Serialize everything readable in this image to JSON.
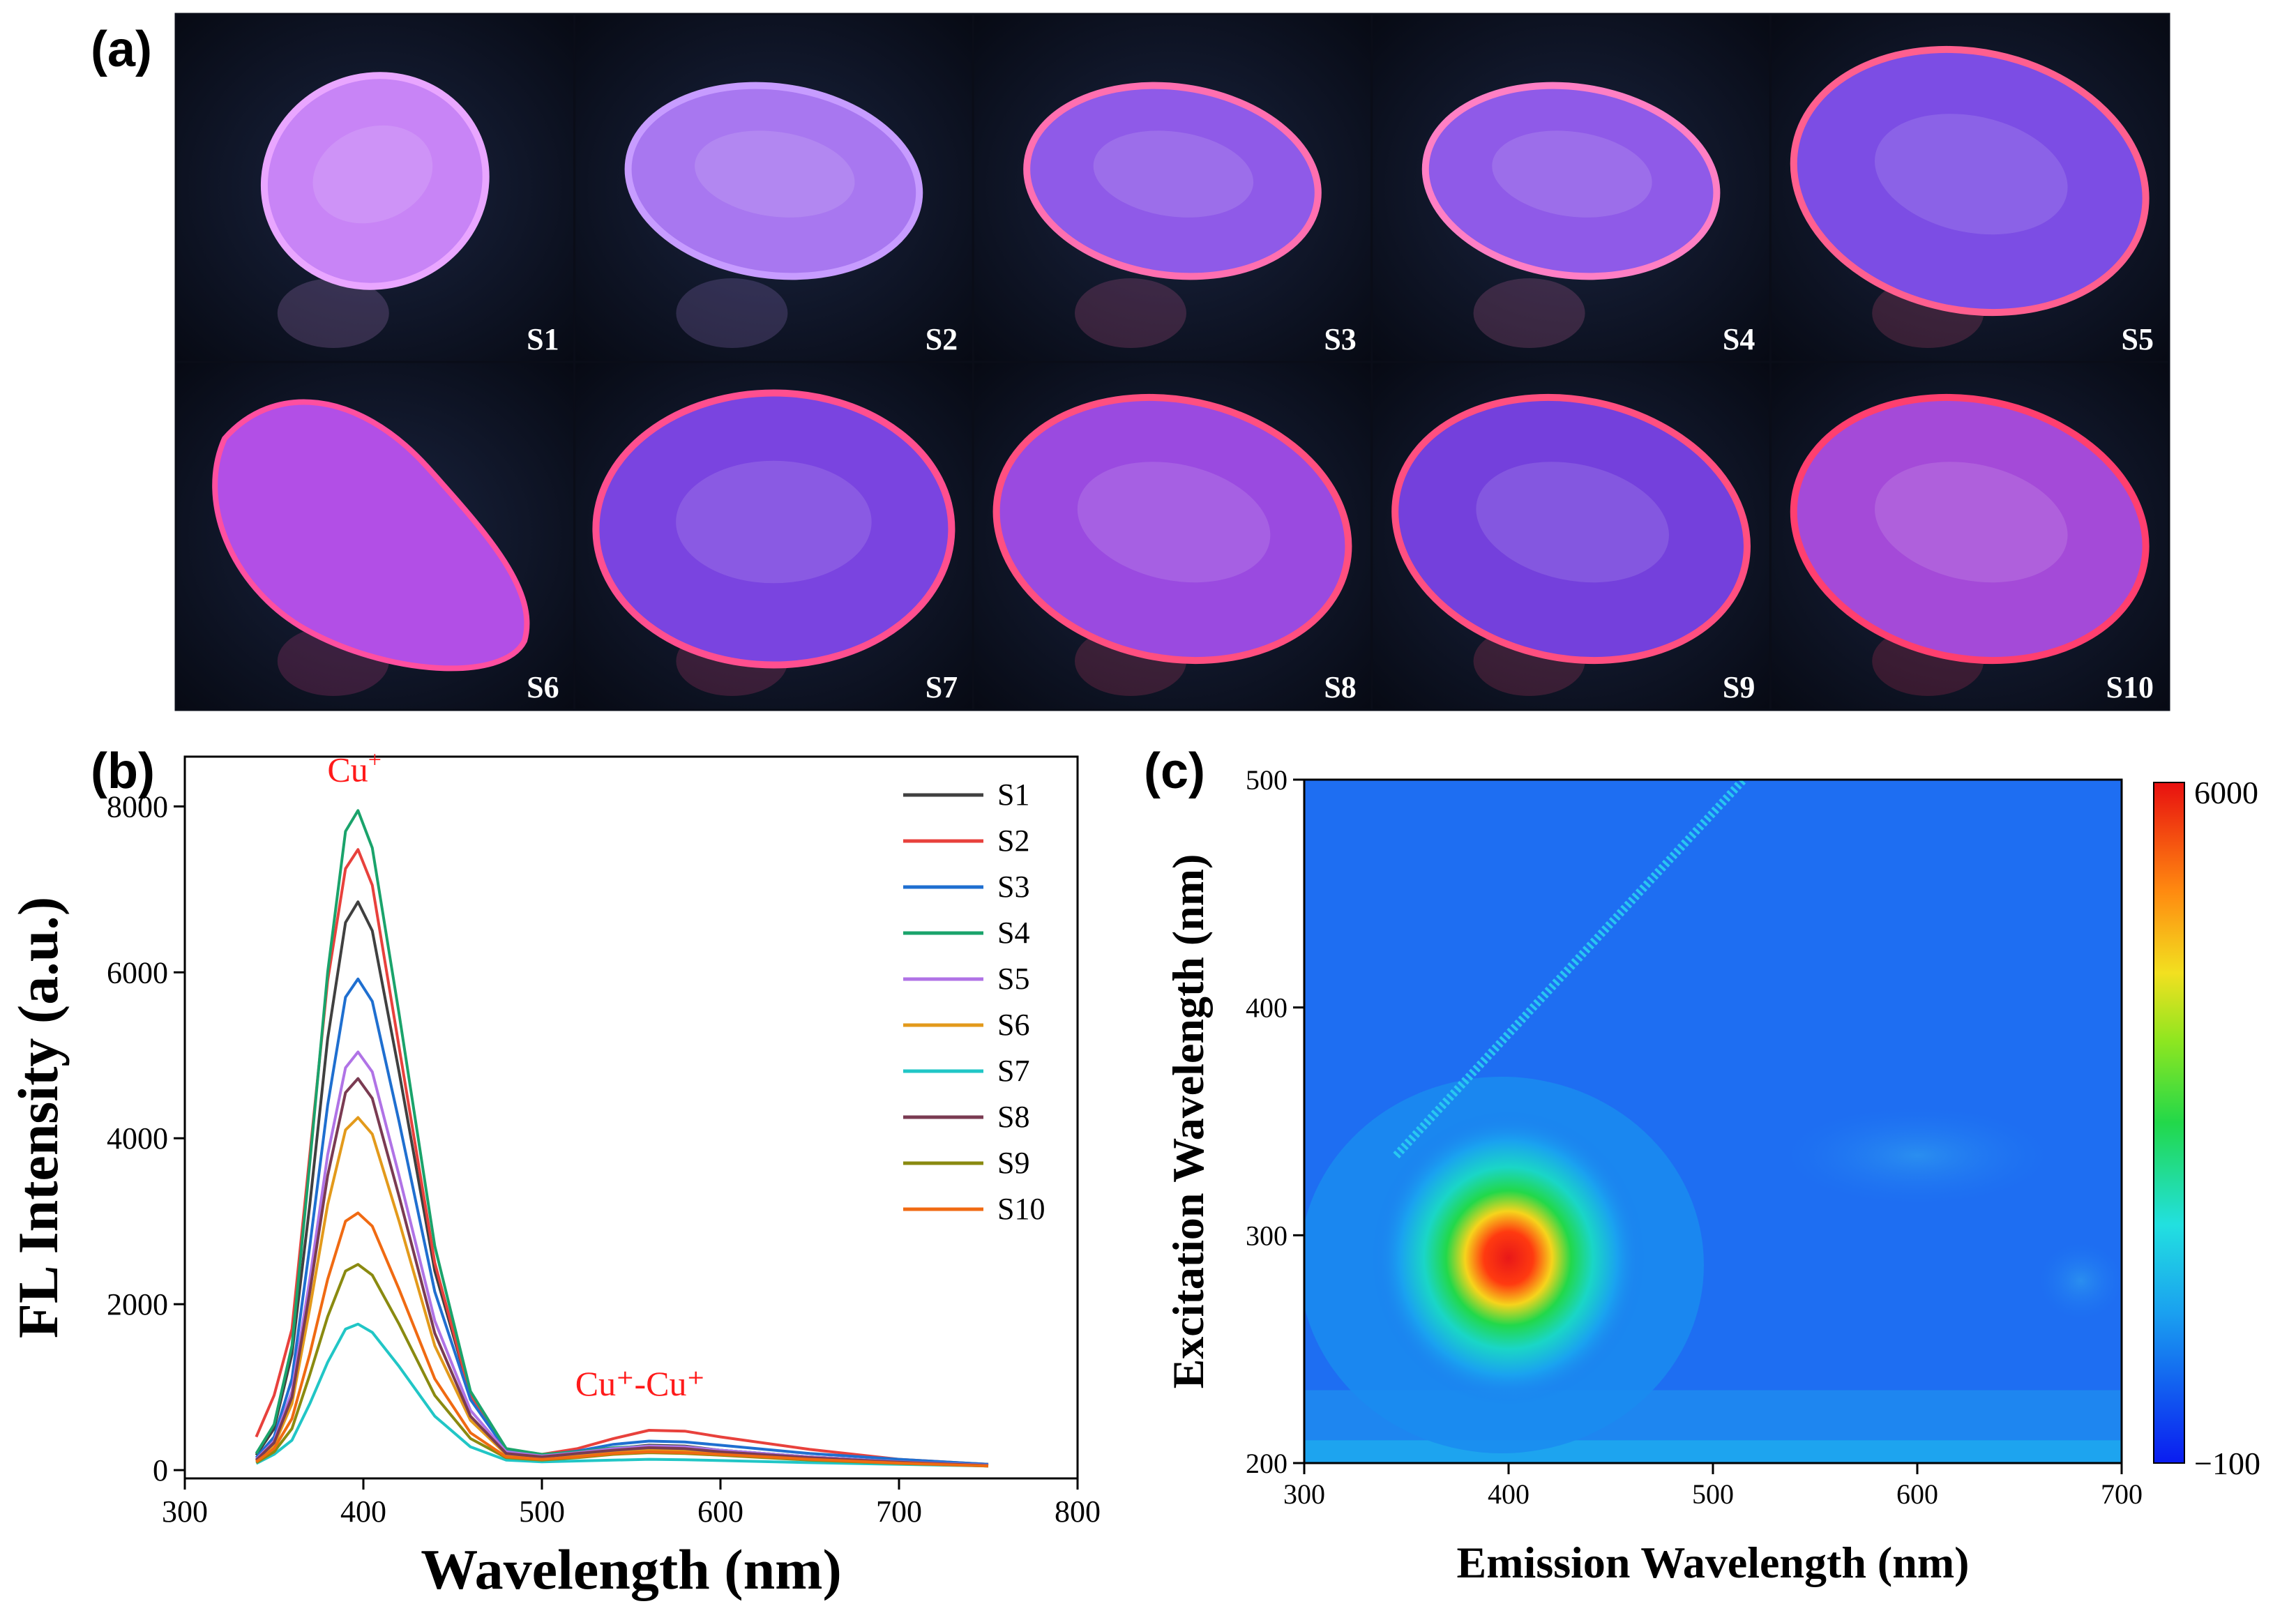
{
  "panels": {
    "a": {
      "label": "(a)",
      "samples": [
        {
          "label": "S1",
          "shape": "oval-tilted",
          "glow": "#c884f6",
          "rim": "#e9a6ff"
        },
        {
          "label": "S2",
          "shape": "oval-flat",
          "glow": "#a877f0",
          "rim": "#c79cff"
        },
        {
          "label": "S3",
          "shape": "oval-flat",
          "glow": "#8f5ae8",
          "rim": "#ff6fb0"
        },
        {
          "label": "S4",
          "shape": "oval-flat",
          "glow": "#8f5ae8",
          "rim": "#ff7fc4"
        },
        {
          "label": "S5",
          "shape": "oval-large",
          "glow": "#7c4de4",
          "rim": "#ff5f8f"
        },
        {
          "label": "S6",
          "shape": "pear",
          "glow": "#b24fe6",
          "rim": "#ff4fa0"
        },
        {
          "label": "S7",
          "shape": "cushion",
          "glow": "#7a44e0",
          "rim": "#ff4f8f"
        },
        {
          "label": "S8",
          "shape": "oval-large",
          "glow": "#9a4ae0",
          "rim": "#ff4f80"
        },
        {
          "label": "S9",
          "shape": "oval-large",
          "glow": "#7440dc",
          "rim": "#ff4f80"
        },
        {
          "label": "S10",
          "shape": "oval-large",
          "glow": "#a44ad8",
          "rim": "#ff3f6f"
        }
      ]
    },
    "b": {
      "label": "(b)",
      "annotations": [
        {
          "text_base": "Cu",
          "text_sup": "+",
          "x": 395,
          "y": 8300,
          "color": "#ff1a1a"
        },
        {
          "text": "Cu⁺-Cu⁺",
          "x": 555,
          "y": 900,
          "color": "#ff1a1a"
        }
      ]
    },
    "c": {
      "label": "(c)",
      "colorbar": {
        "max_label": "6000",
        "min_label": "−100",
        "min": -100,
        "max": 6000
      }
    }
  },
  "chart_data": [
    {
      "type": "line",
      "xlabel": "Wavelength (nm)",
      "ylabel": "FL Intensity (a.u.)",
      "xlim": [
        300,
        800
      ],
      "ylim": [
        -100,
        8600
      ],
      "xticks": [
        300,
        400,
        500,
        600,
        700,
        800
      ],
      "yticks": [
        0,
        2000,
        4000,
        6000,
        8000
      ],
      "legend": "top-right",
      "x": [
        340,
        350,
        360,
        370,
        380,
        390,
        397,
        405,
        420,
        440,
        460,
        480,
        500,
        520,
        540,
        560,
        580,
        600,
        650,
        700,
        750
      ],
      "series": [
        {
          "name": "S1",
          "color": "#404040",
          "values": [
            180,
            500,
            1400,
            3200,
            5200,
            6600,
            6850,
            6500,
            4800,
            2400,
            900,
            250,
            180,
            200,
            260,
            300,
            290,
            240,
            160,
            100,
            60
          ]
        },
        {
          "name": "S2",
          "color": "#e8413c",
          "values": [
            400,
            900,
            1700,
            3800,
            5900,
            7250,
            7480,
            7050,
            5100,
            2500,
            900,
            250,
            190,
            260,
            380,
            480,
            470,
            400,
            250,
            130,
            70
          ]
        },
        {
          "name": "S3",
          "color": "#1f6fd0",
          "values": [
            150,
            400,
            1100,
            2700,
            4400,
            5700,
            5920,
            5650,
            4200,
            2150,
            850,
            240,
            180,
            230,
            310,
            350,
            340,
            300,
            200,
            130,
            70
          ]
        },
        {
          "name": "S4",
          "color": "#1aa36b",
          "values": [
            200,
            550,
            1500,
            3700,
            6000,
            7700,
            7950,
            7500,
            5500,
            2700,
            950,
            260,
            190,
            220,
            270,
            290,
            280,
            240,
            160,
            100,
            60
          ]
        },
        {
          "name": "S5",
          "color": "#b073e6",
          "values": [
            130,
            350,
            950,
            2300,
            3800,
            4850,
            5040,
            4800,
            3550,
            1800,
            720,
            220,
            170,
            210,
            260,
            290,
            280,
            240,
            160,
            100,
            60
          ]
        },
        {
          "name": "S6",
          "color": "#e39a1b",
          "values": [
            110,
            300,
            800,
            1950,
            3200,
            4100,
            4250,
            4050,
            3000,
            1500,
            600,
            190,
            150,
            180,
            220,
            240,
            230,
            200,
            130,
            90,
            50
          ]
        },
        {
          "name": "S7",
          "color": "#21c6c6",
          "values": [
            80,
            190,
            360,
            800,
            1300,
            1700,
            1760,
            1660,
            1250,
            650,
            280,
            120,
            100,
            110,
            120,
            130,
            125,
            115,
            90,
            70,
            50
          ]
        },
        {
          "name": "S8",
          "color": "#7a3b52",
          "values": [
            120,
            330,
            880,
            2150,
            3550,
            4550,
            4720,
            4480,
            3300,
            1650,
            650,
            200,
            160,
            200,
            240,
            270,
            260,
            220,
            150,
            95,
            55
          ]
        },
        {
          "name": "S9",
          "color": "#8a8a10",
          "values": [
            90,
            220,
            500,
            1150,
            1850,
            2400,
            2480,
            2350,
            1760,
            900,
            380,
            150,
            120,
            150,
            190,
            210,
            200,
            180,
            120,
            80,
            50
          ]
        },
        {
          "name": "S10",
          "color": "#f06a12",
          "values": [
            100,
            260,
            620,
            1400,
            2300,
            3000,
            3100,
            2940,
            2180,
            1100,
            450,
            160,
            130,
            160,
            200,
            220,
            210,
            190,
            130,
            85,
            50
          ]
        }
      ]
    },
    {
      "type": "heatmap",
      "xlabel": "Emission Wavelength (nm)",
      "ylabel": "Excitation Wavelength (nm)",
      "xlim": [
        300,
        700
      ],
      "ylim": [
        200,
        500
      ],
      "xticks": [
        300,
        400,
        500,
        600,
        700
      ],
      "yticks": [
        200,
        300,
        400,
        500
      ],
      "peaks": [
        {
          "em": 400,
          "ex": 290,
          "value": 6000
        },
        {
          "em": 600,
          "ex": 335,
          "value": 1200
        },
        {
          "em": 680,
          "ex": 280,
          "value": 800
        }
      ],
      "scatter_line": {
        "from": [
          345,
          335
        ],
        "to": [
          515,
          500
        ]
      }
    }
  ]
}
